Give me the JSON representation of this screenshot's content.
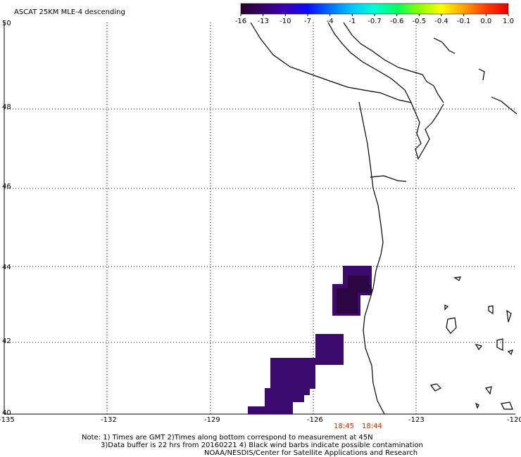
{
  "title": "ASCAT 25KM MLE-4 descending",
  "colorbar": {
    "tick_labels": [
      "-16",
      "-13",
      "-10",
      "-7",
      "-4",
      "-1",
      "-0.7",
      "-0.6",
      "-0.5",
      "-0.4",
      "-0.1",
      "0.0",
      "1.0"
    ],
    "colors": [
      "#2a002a",
      "#36006a",
      "#3b00b4",
      "#0a0aff",
      "#0070ff",
      "#00c8ff",
      "#00ffd2",
      "#00ff60",
      "#8cff00",
      "#ffff00",
      "#ffa000",
      "#ff3c00",
      "#e60000"
    ]
  },
  "axes": {
    "longitude_labels": [
      "-135",
      "-132",
      "-129",
      "-126",
      "-123",
      "-120"
    ],
    "latitude_labels": [
      "50",
      "48",
      "46",
      "44",
      "42",
      "40"
    ],
    "grid": "dotted"
  },
  "pass_times": [
    "18:45",
    "18:44"
  ],
  "time_color": "#d22a00",
  "data_color": "#3c0a6e",
  "notes": [
    "Note: 1) Times are GMT 2)Times along bottom correspond to measurement at 45N",
    "3)Data buffer is 22 hrs from 20160221 4) Black wind barbs indicate possible contamination",
    "NOAA/NESDIS/Center for Satellite Applications and Research"
  ]
}
